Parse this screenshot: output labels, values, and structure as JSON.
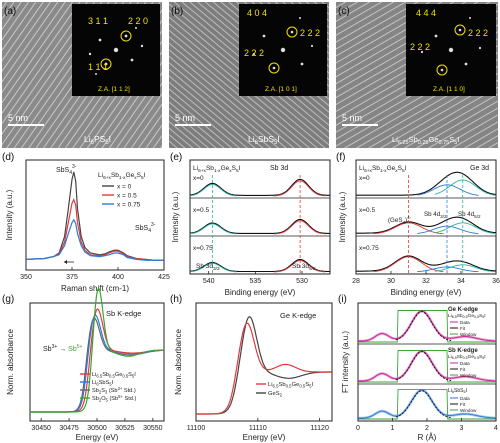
{
  "figure": {
    "tem": [
      {
        "letter": "(a)",
        "scale": "5 nm",
        "formula": "Li6PS5I",
        "za": "Z.A. [1 1 2]",
        "spots": [
          "3 1 1",
          "2 2 0",
          "1 1 1"
        ]
      },
      {
        "letter": "(b)",
        "scale": "5 nm",
        "formula": "Li6SbS5I",
        "za": "Z.A. [1 0 1]",
        "spots": [
          "4 0 4",
          "2 2 2",
          "2 2 2"
        ]
      },
      {
        "letter": "(c)",
        "scale": "5 nm",
        "formula": "Li6.25Sb0.25Ge0.75S5I",
        "za": "Z.A. [1 1 0]",
        "spots": [
          "4 4 4",
          "2 2 2",
          "2 2 2"
        ]
      }
    ],
    "d": {
      "letter": "(d)",
      "legend_title": "Li6+xSb1-xGexS5I",
      "legend": [
        "x = 0",
        "x = 0.5",
        "x = 0.75"
      ],
      "peak1": "SbS4 3-",
      "peak2": "SbS4 3-",
      "xlabel": "Raman shift (cm-1)",
      "ylabel": "Intensity (a.u.)"
    },
    "e": {
      "letter": "(e)",
      "header_formula": "Li6+xSb1-xGexS5I",
      "header_label": "Sb 3d",
      "rows": [
        "x=0",
        "x=0.5",
        "x=0.75"
      ],
      "peak_left": "Sb 3d3/2",
      "peak_right": "Sb 3d5/2",
      "xlabel": "Binding energy (eV)",
      "ylabel": "Intensity (a.u.)"
    },
    "f": {
      "letter": "(f)",
      "header_formula": "Li6+xSb1-xGexS5I",
      "header_label": "Ge 3d",
      "rows": [
        "x=0",
        "x=0.5",
        "x=0.75"
      ],
      "peak_a": "(GeS4)4-",
      "peak_b": "Sb 4d3/2",
      "peak_c": "Sb 4d5/2",
      "xlabel": "Binding energy (eV)",
      "ylabel": "Intensity (a.u.)"
    },
    "g": {
      "letter": "(g)",
      "title": "Sb K-edge",
      "annotation": "Sb3+ → Sb5+",
      "legend": [
        "Li6.5Sb0.5Ge0.5S5I",
        "Li6SbS5I",
        "Sb2S3 (Sb3+ Std.)",
        "Sb2O5 (Sb5+ Std.)"
      ],
      "xlabel": "Energy (eV)",
      "ylabel": "Norm. absorbance"
    },
    "h": {
      "letter": "(h)",
      "title": "Ge K-edge",
      "legend": [
        "Li6.5Sb0.5Ge0.5S5I",
        "GeS2"
      ],
      "xlabel": "Energy (eV)",
      "ylabel": "Norm. absorbance"
    },
    "i": {
      "letter": "(i)",
      "blocks": [
        {
          "title": "Ge K-edge",
          "formula": "Li6.5Sb0.5Ge0.5S5I",
          "legend": [
            "Data",
            "Fit",
            "Window"
          ]
        },
        {
          "title": "Sb K-edge",
          "formula": "Li6.5Sb0.5Ge0.5S5I",
          "legend": [
            "Data",
            "Fit",
            "Window"
          ]
        },
        {
          "title": "",
          "formula": "Li6SbS5I",
          "legend": [
            "Data",
            "Fit",
            "Window"
          ]
        }
      ],
      "xlabel": "R (Å)",
      "ylabel": "FT intensity (a.u.)"
    },
    "colors": {
      "black": "#222222",
      "red": "#e03a3e",
      "blue": "#2c7bd6",
      "green": "#3aa535",
      "gray": "#666666",
      "yellow": "#f5e000",
      "magenta": "#c9249b",
      "fit_black": "#111111"
    }
  },
  "chart_data": [
    {
      "type": "line",
      "panel": "d",
      "xlim": [
        350,
        425
      ],
      "xticks": [
        350,
        375,
        400,
        425
      ],
      "series": [
        {
          "name": "x = 0",
          "color": "#444444",
          "x": [
            350,
            360,
            365,
            368,
            371,
            373,
            375,
            376,
            377,
            378,
            380,
            382,
            385,
            390,
            393,
            395,
            398,
            400,
            403,
            405,
            410,
            415,
            420,
            425
          ],
          "y": [
            0.05,
            0.06,
            0.08,
            0.12,
            0.3,
            0.6,
            0.92,
            1.0,
            0.9,
            0.6,
            0.3,
            0.18,
            0.12,
            0.1,
            0.11,
            0.13,
            0.15,
            0.15,
            0.12,
            0.09,
            0.06,
            0.05,
            0.04,
            0.04
          ]
        },
        {
          "name": "x = 0.5",
          "color": "#e03a3e",
          "x": [
            350,
            360,
            365,
            368,
            371,
            373,
            375,
            376,
            377,
            378,
            380,
            382,
            385,
            390,
            393,
            395,
            398,
            400,
            403,
            405,
            410,
            415,
            420,
            425
          ],
          "y": [
            0.05,
            0.06,
            0.08,
            0.11,
            0.24,
            0.45,
            0.66,
            0.7,
            0.64,
            0.45,
            0.24,
            0.15,
            0.1,
            0.09,
            0.1,
            0.12,
            0.14,
            0.14,
            0.11,
            0.08,
            0.06,
            0.05,
            0.04,
            0.04
          ]
        },
        {
          "name": "x = 0.75",
          "color": "#2c7bd6",
          "x": [
            350,
            360,
            365,
            368,
            371,
            373,
            375,
            376,
            377,
            378,
            380,
            382,
            385,
            390,
            393,
            395,
            398,
            400,
            403,
            405,
            410,
            415,
            420,
            425
          ],
          "y": [
            0.05,
            0.06,
            0.08,
            0.1,
            0.2,
            0.33,
            0.45,
            0.48,
            0.44,
            0.33,
            0.2,
            0.13,
            0.09,
            0.08,
            0.09,
            0.1,
            0.12,
            0.12,
            0.1,
            0.07,
            0.05,
            0.04,
            0.04,
            0.04
          ]
        }
      ]
    },
    {
      "type": "line",
      "panel": "e",
      "xlim": [
        542,
        527
      ],
      "xticks": [
        540,
        535,
        530
      ]
    },
    {
      "type": "line",
      "panel": "f",
      "xlim": [
        28,
        36
      ],
      "xticks": [
        28,
        30,
        32,
        34,
        36
      ]
    },
    {
      "type": "line",
      "panel": "g",
      "xlim": [
        30440,
        30560
      ],
      "xticks": [
        30450,
        30475,
        30500,
        30525,
        30550
      ]
    },
    {
      "type": "line",
      "panel": "h",
      "xlim": [
        11100,
        11122
      ],
      "xticks": [
        11100,
        11110,
        11120
      ]
    },
    {
      "type": "line",
      "panel": "i",
      "xlim": [
        0,
        4
      ],
      "xticks": [
        0,
        1,
        2,
        3,
        4
      ]
    }
  ]
}
